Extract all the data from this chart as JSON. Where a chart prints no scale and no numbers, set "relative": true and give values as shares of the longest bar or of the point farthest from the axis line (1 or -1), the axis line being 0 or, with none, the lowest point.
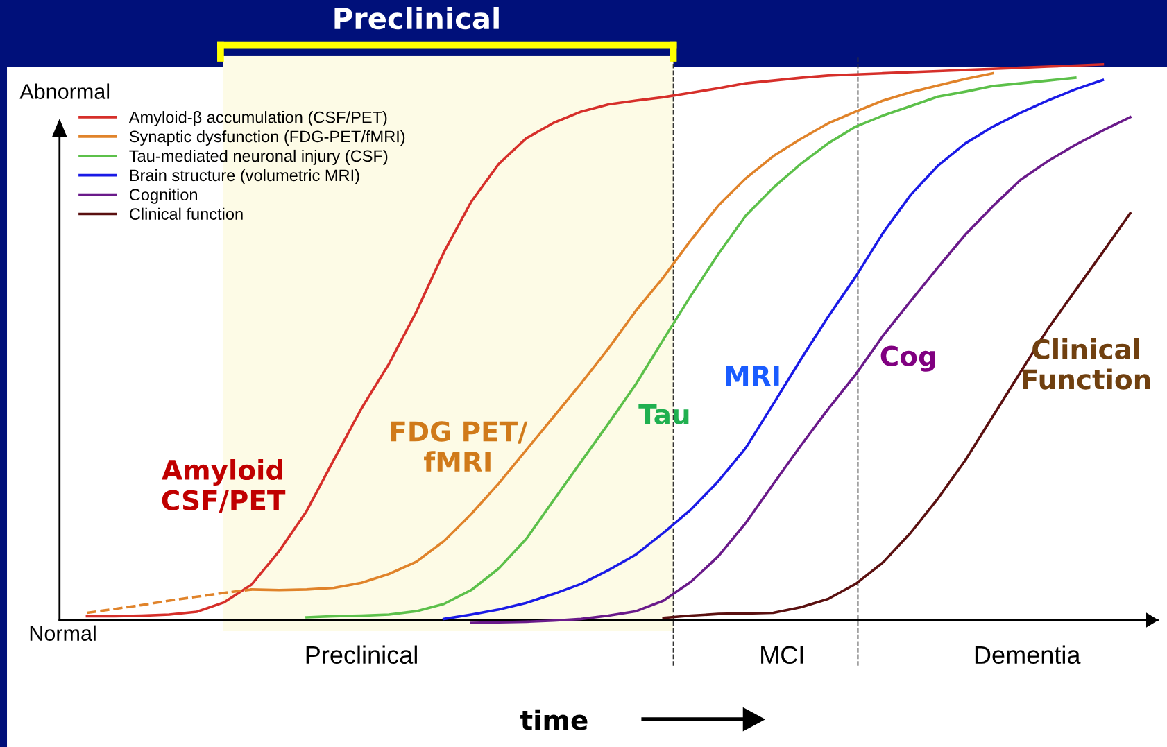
{
  "chart_data": {
    "type": "line",
    "relative": true,
    "title": "Preclinical",
    "xlabel": "time",
    "legend": "top left",
    "marker": "none",
    "line_style": "solid",
    "categories": [
      null,
      null,
      null,
      null,
      null,
      null,
      null,
      null,
      null,
      null,
      null,
      null,
      null,
      null,
      null,
      null,
      null,
      null,
      null,
      null,
      null,
      null,
      null,
      null,
      null,
      null,
      null,
      null,
      null,
      null,
      null,
      null,
      null,
      null,
      null,
      null,
      null,
      null,
      null,
      null,
      null
    ],
    "series": [
      {
        "name": "Amyloid-β accumulation (CSF/PET)",
        "color": "#d62f2a",
        "values": [
          null,
          0.007,
          0.007,
          0.008,
          0.01,
          0.015,
          0.032,
          0.064,
          0.124,
          0.196,
          0.289,
          0.381,
          0.461,
          0.555,
          0.662,
          0.753,
          0.821,
          0.867,
          0.895,
          0.915,
          0.928,
          0.935,
          0.941,
          0.949,
          0.957,
          0.966,
          0.971,
          0.976,
          0.98,
          0.982,
          0.984,
          0.986,
          0.988,
          0.99,
          0.992,
          0.994,
          0.996,
          0.998,
          1.0,
          null,
          null
        ]
      },
      {
        "name": "Synaptic dysfunction (FDG-PET/fMRI)",
        "color": "#e0832a",
        "values": [
          null,
          null,
          null,
          null,
          null,
          null,
          null,
          0.055,
          0.054,
          0.055,
          0.058,
          0.067,
          0.083,
          0.105,
          0.142,
          0.191,
          0.246,
          0.306,
          0.366,
          0.426,
          0.489,
          0.557,
          0.617,
          0.684,
          0.746,
          0.795,
          0.835,
          0.866,
          0.894,
          0.915,
          0.935,
          0.95,
          0.962,
          0.974,
          0.984,
          null,
          null,
          null,
          null,
          null,
          null
        ]
      },
      {
        "color": "#e0832a",
        "line_style": "dashed",
        "values": [
          null,
          0.013,
          0.02,
          0.027,
          0.035,
          0.042,
          0.049,
          0.055,
          null,
          null,
          null,
          null,
          null,
          null,
          null,
          null,
          null,
          null,
          null,
          null,
          null,
          null,
          null,
          null,
          null,
          null,
          null,
          null,
          null,
          null,
          null,
          null,
          null,
          null,
          null,
          null,
          null,
          null,
          null,
          null,
          null
        ]
      },
      {
        "name": "Tau-mediated neuronal injury (CSF)",
        "color": "#5cc04a",
        "values": [
          null,
          null,
          null,
          null,
          null,
          null,
          null,
          null,
          null,
          0.005,
          0.007,
          0.008,
          0.01,
          0.016,
          0.029,
          0.054,
          0.093,
          0.146,
          0.216,
          0.285,
          0.354,
          0.425,
          0.505,
          0.584,
          0.659,
          0.728,
          0.778,
          0.821,
          0.858,
          0.888,
          0.908,
          0.925,
          0.942,
          0.951,
          0.961,
          0.966,
          0.971,
          0.976,
          null,
          null,
          null
        ]
      },
      {
        "name": "Brain structure (volumetric MRI)",
        "color": "#1a1ae6",
        "values": [
          null,
          null,
          null,
          null,
          null,
          null,
          null,
          null,
          null,
          null,
          null,
          null,
          null,
          null,
          0.002,
          0.01,
          0.019,
          0.031,
          0.047,
          0.065,
          0.09,
          0.118,
          0.157,
          0.199,
          0.25,
          0.31,
          0.389,
          0.469,
          0.546,
          0.618,
          0.697,
          0.765,
          0.818,
          0.858,
          0.888,
          0.913,
          0.935,
          0.955,
          0.972,
          null,
          null
        ]
      },
      {
        "name": "Cognition",
        "color": "#6a1a8a",
        "values": [
          null,
          null,
          null,
          null,
          null,
          null,
          null,
          null,
          null,
          null,
          null,
          null,
          null,
          null,
          null,
          -0.005,
          -0.004,
          -0.003,
          -0.001,
          0.002,
          0.008,
          0.016,
          0.035,
          0.069,
          0.115,
          0.175,
          0.245,
          0.314,
          0.38,
          0.442,
          0.512,
          0.574,
          0.635,
          0.694,
          0.745,
          0.792,
          0.826,
          0.855,
          0.881,
          0.905,
          null
        ]
      },
      {
        "name": "Clinical function",
        "color": "#5a1010",
        "values": [
          null,
          null,
          null,
          null,
          null,
          null,
          null,
          null,
          null,
          null,
          null,
          null,
          null,
          null,
          null,
          null,
          null,
          null,
          null,
          null,
          null,
          null,
          0.004,
          0.008,
          0.011,
          0.012,
          0.013,
          0.023,
          0.038,
          0.065,
          0.104,
          0.157,
          0.219,
          0.288,
          0.367,
          0.446,
          0.524,
          0.593,
          0.662,
          0.732,
          null
        ]
      }
    ],
    "annotations": [
      "Amyloid\nCSF/PET",
      "FDG PET/\nfMRI",
      "Tau",
      "MRI",
      "Cog",
      "Clinical\nFunction",
      "Preclinical",
      "MCI",
      "Dementia",
      "Abnormal",
      "Normal"
    ]
  }
}
